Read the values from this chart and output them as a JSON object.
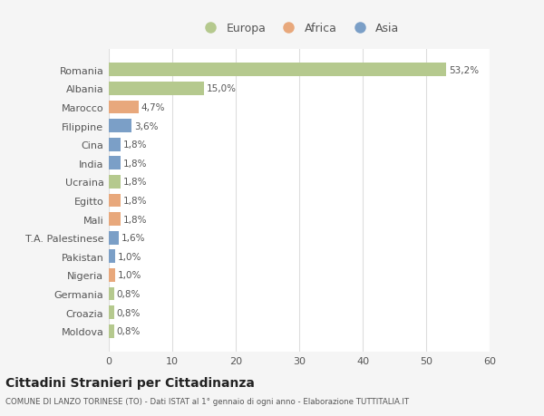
{
  "categories": [
    "Romania",
    "Albania",
    "Marocco",
    "Filippine",
    "Cina",
    "India",
    "Ucraina",
    "Egitto",
    "Mali",
    "T.A. Palestinese",
    "Pakistan",
    "Nigeria",
    "Germania",
    "Croazia",
    "Moldova"
  ],
  "values": [
    53.2,
    15.0,
    4.7,
    3.6,
    1.8,
    1.8,
    1.8,
    1.8,
    1.8,
    1.6,
    1.0,
    1.0,
    0.8,
    0.8,
    0.8
  ],
  "labels": [
    "53,2%",
    "15,0%",
    "4,7%",
    "3,6%",
    "1,8%",
    "1,8%",
    "1,8%",
    "1,8%",
    "1,8%",
    "1,6%",
    "1,0%",
    "1,0%",
    "0,8%",
    "0,8%",
    "0,8%"
  ],
  "colors": [
    "#b5c98e",
    "#b5c98e",
    "#e8a87c",
    "#7b9fc7",
    "#7b9fc7",
    "#7b9fc7",
    "#b5c98e",
    "#e8a87c",
    "#e8a87c",
    "#7b9fc7",
    "#7b9fc7",
    "#e8a87c",
    "#b5c98e",
    "#b5c98e",
    "#b5c98e"
  ],
  "legend_labels": [
    "Europa",
    "Africa",
    "Asia"
  ],
  "legend_colors": [
    "#b5c98e",
    "#e8a87c",
    "#7b9fc7"
  ],
  "title": "Cittadini Stranieri per Cittadinanza",
  "subtitle": "COMUNE DI LANZO TORINESE (TO) - Dati ISTAT al 1° gennaio di ogni anno - Elaborazione TUTTITALIA.IT",
  "xlim": [
    0,
    60
  ],
  "xticks": [
    0,
    10,
    20,
    30,
    40,
    50,
    60
  ],
  "background_color": "#f5f5f5",
  "bar_background": "#ffffff",
  "grid_color": "#dddddd",
  "text_color": "#555555",
  "bar_height": 0.72
}
